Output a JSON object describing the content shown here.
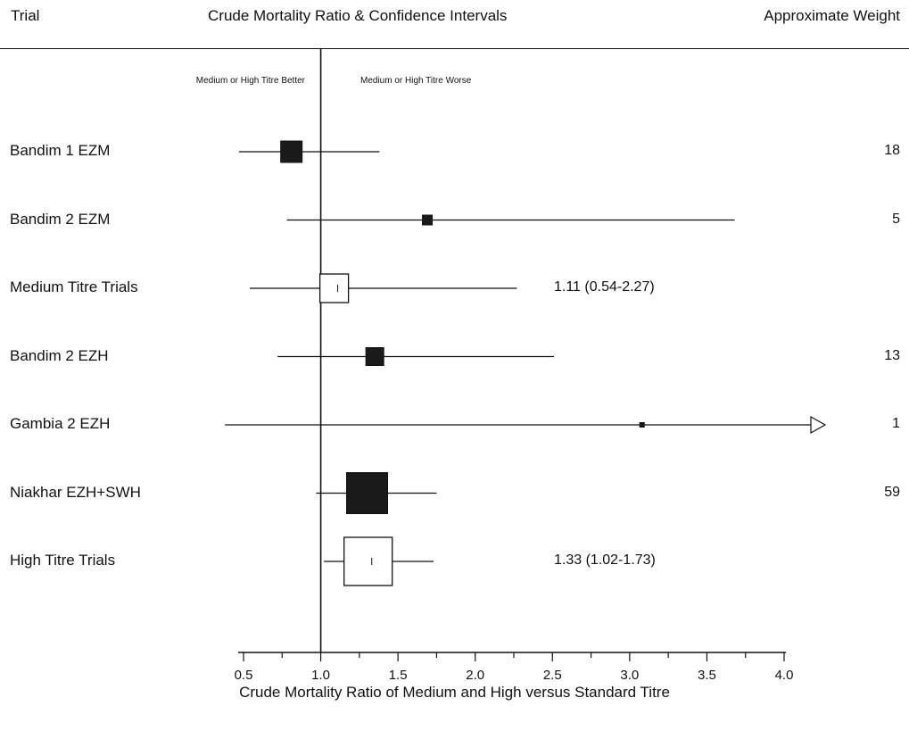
{
  "header": {
    "trial": "Trial",
    "center": "Crude Mortality Ratio & Confidence Intervals",
    "weight": "Approximate Weight"
  },
  "zones": {
    "left": "Medium or High Titre Better",
    "right": "Medium or High Titre Worse"
  },
  "chart_data": {
    "type": "forest",
    "title": "Crude Mortality Ratio & Confidence Intervals",
    "xlabel": "Crude Mortality Ratio of Medium and High versus Standard Titre",
    "xlim": [
      0.5,
      4.0
    ],
    "xticks": [
      0.5,
      1.0,
      1.5,
      2.0,
      2.5,
      3.0,
      3.5,
      4.0
    ],
    "tick_labels": [
      "0.5",
      "1.0",
      "1.5",
      "2.0",
      "2.5",
      "3.0",
      "3.5",
      "4.0"
    ],
    "reference_line": 1.0,
    "rows": [
      {
        "label": "Bandim 1 EZM",
        "estimate": 0.81,
        "lower": 0.47,
        "upper": 1.38,
        "weight": "18",
        "summary": false,
        "summary_text": "",
        "marker_size": 24
      },
      {
        "label": "Bandim 2 EZM",
        "estimate": 1.69,
        "lower": 0.78,
        "upper": 3.68,
        "weight": "5",
        "summary": false,
        "summary_text": "",
        "marker_size": 11
      },
      {
        "label": "Medium Titre Trials",
        "estimate": 1.11,
        "lower": 0.54,
        "upper": 2.27,
        "weight": "",
        "summary": true,
        "summary_text": "1.11 (0.54-2.27)",
        "marker_size": 32
      },
      {
        "label": "Bandim 2 EZH",
        "estimate": 1.35,
        "lower": 0.72,
        "upper": 2.51,
        "weight": "13",
        "summary": false,
        "summary_text": "",
        "marker_size": 20
      },
      {
        "label": "Gambia 2 EZH",
        "estimate": 3.08,
        "lower": 0.38,
        "upper": 4.0,
        "weight": "1",
        "summary": false,
        "summary_text": "",
        "marker_size": 5,
        "arrow_right": true
      },
      {
        "label": "Niakhar EZH+SWH",
        "estimate": 1.3,
        "lower": 0.97,
        "upper": 1.75,
        "weight": "59",
        "summary": false,
        "summary_text": "",
        "marker_size": 46
      },
      {
        "label": "High Titre Trials",
        "estimate": 1.33,
        "lower": 1.02,
        "upper": 1.73,
        "weight": "",
        "summary": true,
        "summary_text": "1.33 (1.02-1.73)",
        "marker_size": 54
      }
    ]
  }
}
